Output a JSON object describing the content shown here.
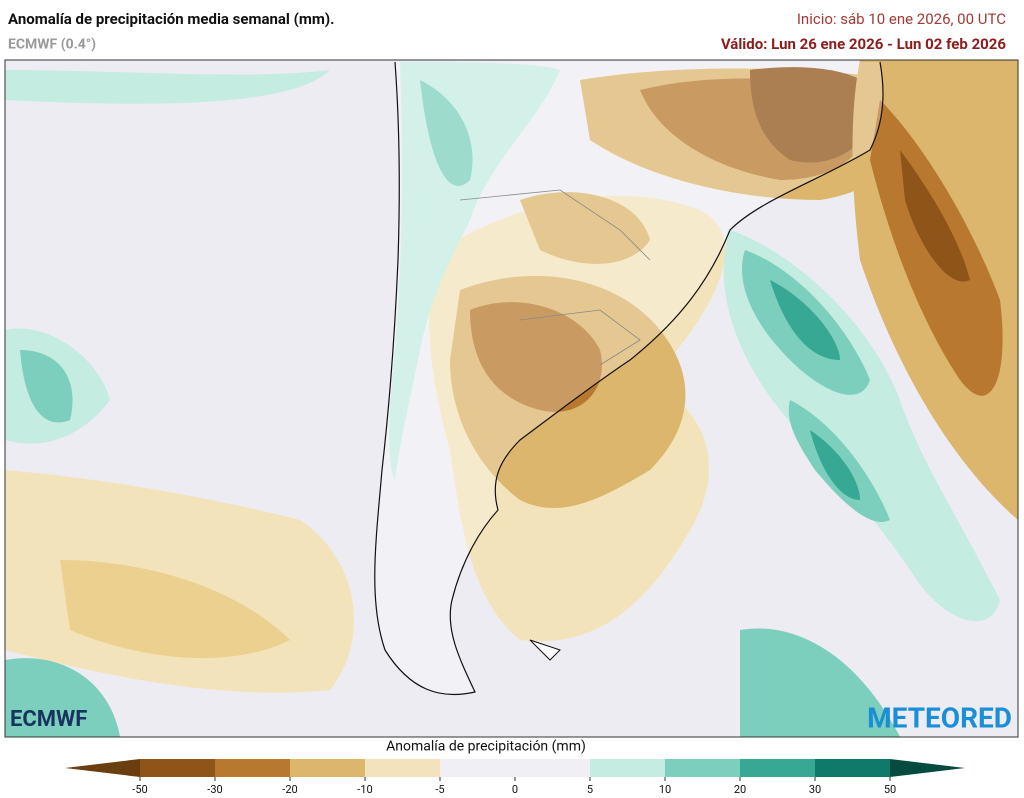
{
  "header": {
    "title": "Anomalía de precipitación media semanal (mm).",
    "model": "ECMWF (0.4°)",
    "init": "Inicio:  sáb 10 ene 2026, 00 UTC",
    "valid": "Válido: Lun 26 ene 2026 - Lun 02 feb 2026"
  },
  "colorbar": {
    "title": "Anomalía de precipitación (mm)",
    "ticks": [
      -50,
      -30,
      -20,
      -10,
      -5,
      0,
      5,
      10,
      20,
      30,
      50
    ],
    "colors": [
      "#8f5418",
      "#b8782f",
      "#dcb66c",
      "#f3e3bb",
      "#f1eff6",
      "#f1eff6",
      "#c5ece0",
      "#7ccfbc",
      "#36a894",
      "#0f7a6a"
    ],
    "extend_colors": [
      "#6b3e10",
      "#064a40"
    ]
  },
  "logos": {
    "left": "ECMWF",
    "right": "METEORED"
  }
}
